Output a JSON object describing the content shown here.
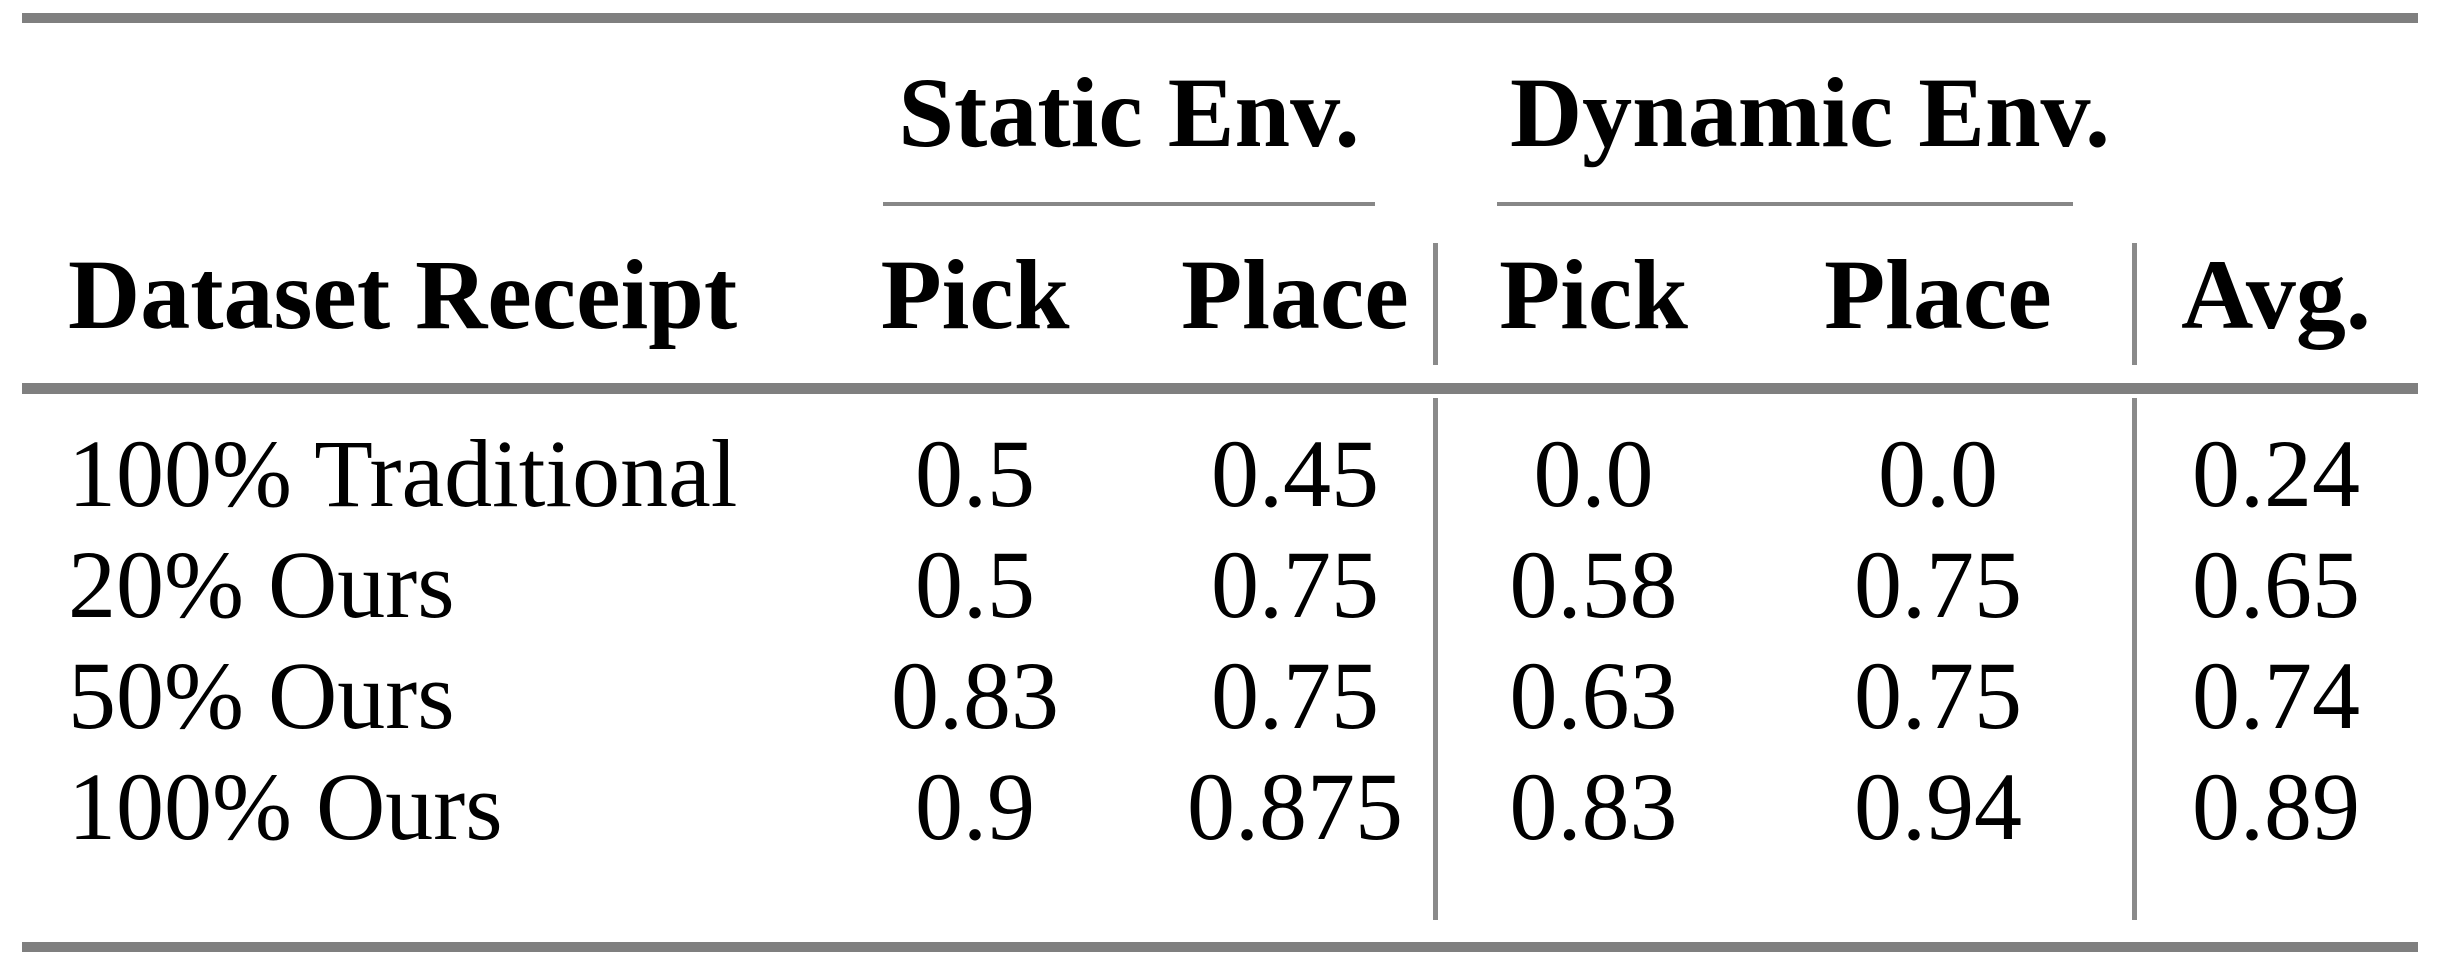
{
  "table": {
    "group_headers": {
      "static": "Static Env.",
      "dynamic": "Dynamic Env."
    },
    "column_headers": {
      "row_header": "Dataset Receipt",
      "static_pick": "Pick",
      "static_place": "Place",
      "dynamic_pick": "Pick",
      "dynamic_place": "Place",
      "avg": "Avg."
    },
    "rows": [
      {
        "label": "100% Traditional",
        "values": [
          "0.5",
          "0.45",
          "0.0",
          "0.0",
          "0.24"
        ]
      },
      {
        "label": "20% Ours",
        "values": [
          "0.5",
          "0.75",
          "0.58",
          "0.75",
          "0.65"
        ]
      },
      {
        "label": "50% Ours",
        "values": [
          "0.83",
          "0.75",
          "0.63",
          "0.75",
          "0.74"
        ]
      },
      {
        "label": "100% Ours",
        "values": [
          "0.9",
          "0.875",
          "0.83",
          "0.94",
          "0.89"
        ]
      }
    ],
    "colors": {
      "thick_rule": "#7f7f7f",
      "thin_rule": "#878787",
      "text": "#000000",
      "background": "#ffffff"
    }
  }
}
